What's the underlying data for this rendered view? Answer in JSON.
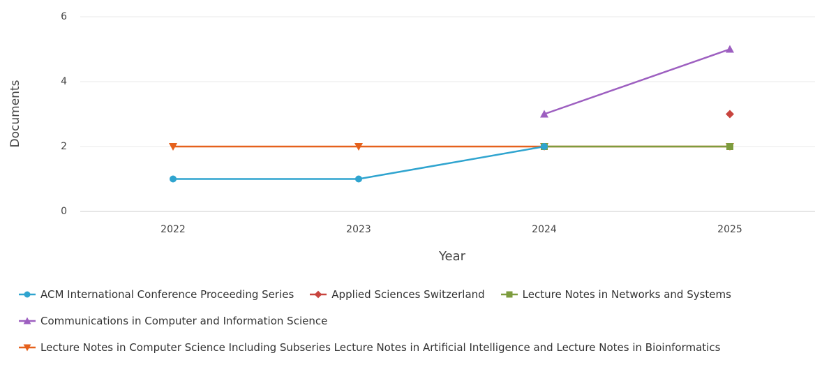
{
  "chart_data": {
    "type": "line",
    "x_label": "Year",
    "y_label": "Documents",
    "categories": [
      "2022",
      "2023",
      "2024",
      "2025"
    ],
    "ylim": [
      0,
      6
    ],
    "yticks": [
      0,
      2,
      4,
      6
    ],
    "grid": true,
    "legend": "bottom",
    "series": [
      {
        "name": "ACM International Conference Proceeding Series",
        "color": "#2fa4cf",
        "marker": "circle",
        "values": [
          1,
          1,
          2,
          null
        ]
      },
      {
        "name": "Applied Sciences Switzerland",
        "color": "#c8443e",
        "marker": "diamond",
        "values": [
          null,
          null,
          null,
          3
        ]
      },
      {
        "name": "Lecture Notes in Networks and Systems",
        "color": "#7d9c3e",
        "marker": "square",
        "values": [
          null,
          null,
          2,
          2
        ]
      },
      {
        "name": "Communications in Computer and Information Science",
        "color": "#9d5fc0",
        "marker": "triangle",
        "values": [
          null,
          null,
          3,
          5
        ]
      },
      {
        "name": "Lecture Notes in Computer Science Including Subseries Lecture Notes in Artificial Intelligence and Lecture Notes in Bioinformatics",
        "color": "#e5611c",
        "marker": "triangle-down",
        "values": [
          2,
          2,
          2,
          2
        ]
      }
    ]
  }
}
